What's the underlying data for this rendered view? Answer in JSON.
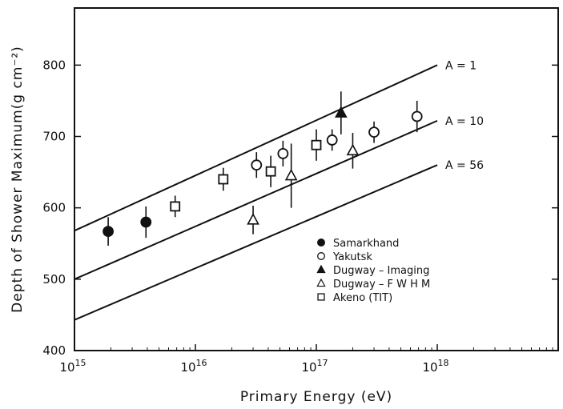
{
  "chart_data": {
    "type": "scatter",
    "title": "",
    "xlabel": "Primary Energy (eV)",
    "ylabel": "Depth of Shower Maximum(g cm⁻²)",
    "x_scale": "log",
    "xlim": [
      1000000000000000.0,
      1e+19
    ],
    "ylim": [
      400,
      880
    ],
    "x_ticks": [
      {
        "value": 1000000000000000.0,
        "base": "10",
        "exp": "15"
      },
      {
        "value": 1e+16,
        "base": "10",
        "exp": "16"
      },
      {
        "value": 1e+17,
        "base": "10",
        "exp": "17"
      },
      {
        "value": 1e+18,
        "base": "10",
        "exp": "18"
      }
    ],
    "y_ticks": [
      {
        "value": 400,
        "label": "400"
      },
      {
        "value": 500,
        "label": "500"
      },
      {
        "value": 600,
        "label": "600"
      },
      {
        "value": 700,
        "label": "700"
      },
      {
        "value": 800,
        "label": "800"
      }
    ],
    "lines": [
      {
        "name": "A = 1",
        "points": [
          [
            1000000000000000.0,
            568
          ],
          [
            1e+18,
            800
          ]
        ]
      },
      {
        "name": "A = 10",
        "points": [
          [
            1000000000000000.0,
            500
          ],
          [
            1e+18,
            722
          ]
        ]
      },
      {
        "name": "A = 56",
        "points": [
          [
            1000000000000000.0,
            443
          ],
          [
            1e+18,
            660
          ]
        ]
      }
    ],
    "series": [
      {
        "name": "Samarkhand",
        "marker": "filled-circle",
        "points": [
          {
            "x": 1900000000000000.0,
            "y": 567,
            "err": 20
          },
          {
            "x": 3900000000000000.0,
            "y": 580,
            "err": 22
          }
        ]
      },
      {
        "name": "Yakutsk",
        "marker": "open-circle",
        "points": [
          {
            "x": 3.2e+16,
            "y": 660,
            "err": 18
          },
          {
            "x": 5.3e+16,
            "y": 676,
            "err": 18
          },
          {
            "x": 1.35e+17,
            "y": 695,
            "err": 15
          },
          {
            "x": 3e+17,
            "y": 706,
            "err": 15
          },
          {
            "x": 6.8e+17,
            "y": 728,
            "err": 22
          }
        ]
      },
      {
        "name": "Dugway – Imaging",
        "marker": "filled-triangle",
        "points": [
          {
            "x": 1.6e+17,
            "y": 733,
            "err": 30
          }
        ]
      },
      {
        "name": "Dugway – F W H M",
        "marker": "open-triangle",
        "points": [
          {
            "x": 3e+16,
            "y": 583,
            "err": 20
          },
          {
            "x": 6.2e+16,
            "y": 645,
            "err": 45
          },
          {
            "x": 2e+17,
            "y": 680,
            "err": 25
          }
        ]
      },
      {
        "name": "Akeno  (TIT)",
        "marker": "open-square",
        "points": [
          {
            "x": 6800000000000000.0,
            "y": 602,
            "err": 15
          },
          {
            "x": 1.7e+16,
            "y": 640,
            "err": 16
          },
          {
            "x": 4.2e+16,
            "y": 651,
            "err": 22
          },
          {
            "x": 1e+17,
            "y": 688,
            "err": 22
          }
        ]
      }
    ],
    "legend_placement": "lower-right",
    "grid": false
  }
}
